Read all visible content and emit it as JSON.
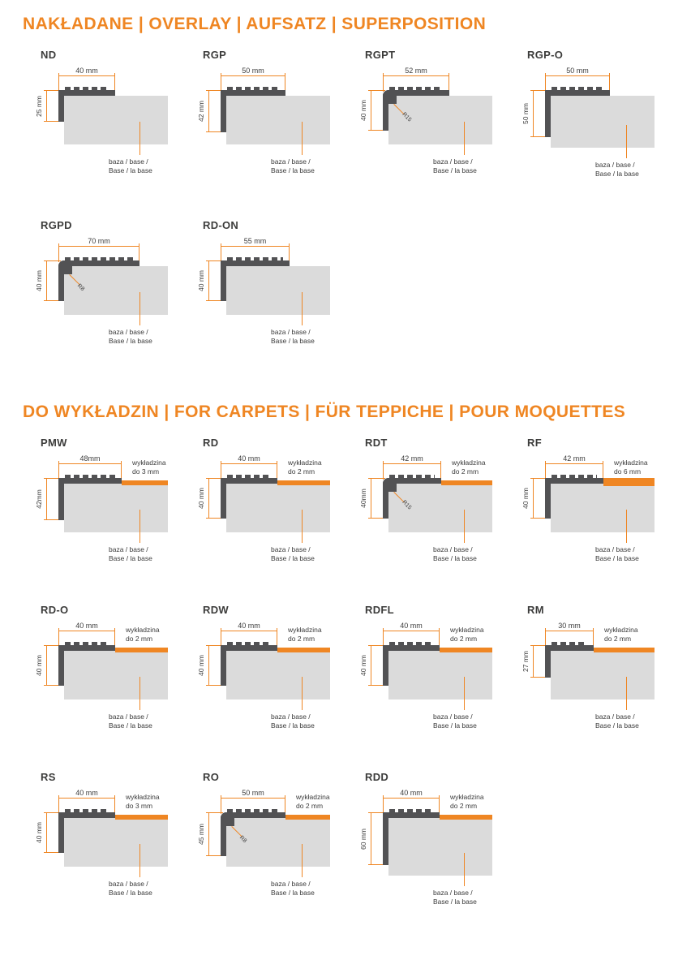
{
  "theme": {
    "accent_color": "#EF8623",
    "profile_color": "#525254",
    "base_color": "#DBDBDB",
    "text_color": "#3B3B3B"
  },
  "sections": [
    {
      "id": "overlay",
      "title": "NAKŁADANE | OVERLAY | AUFSATZ | SUPERPOSITION",
      "profiles": [
        {
          "name": "ND",
          "width_label": "40 mm",
          "height_label": "25 mm",
          "width_mm": 40,
          "height_mm": 25,
          "base_label": "baza / base /\nBase / la base"
        },
        {
          "name": "RGP",
          "width_label": "50 mm",
          "height_label": "42 mm",
          "width_mm": 50,
          "height_mm": 42,
          "base_label": "baza / base /\nBase / la base"
        },
        {
          "name": "RGPT",
          "width_label": "52 mm",
          "height_label": "40 mm",
          "width_mm": 52,
          "height_mm": 40,
          "radius": "R15",
          "rounded": true,
          "base_label": "baza / base /\nBase / la base"
        },
        {
          "name": "RGP-O",
          "width_label": "50 mm",
          "height_label": "50 mm",
          "width_mm": 50,
          "height_mm": 50,
          "base_label": "baza / base /\nBase / la base"
        },
        {
          "name": "RGPD",
          "width_label": "70 mm",
          "height_label": "40 mm",
          "width_mm": 70,
          "height_mm": 40,
          "radius": "R8",
          "rounded": true,
          "base_label": "baza / base /\nBase / la base"
        },
        {
          "name": "RD-ON",
          "width_label": "55 mm",
          "height_label": "40 mm",
          "width_mm": 55,
          "height_mm": 40,
          "base_label": "baza / base /\nBase / la base"
        }
      ]
    },
    {
      "id": "carpets",
      "title": "DO WYKŁADZIN | FOR CARPETS | FÜR TEPPICHE | POUR MOQUETTES",
      "profiles": [
        {
          "name": "PMW",
          "width_label": "48mm",
          "height_label": "42mm",
          "width_mm": 48,
          "height_mm": 42,
          "carpet_label": "wykładzina\ndo 3 mm",
          "base_label": "baza / base /\nBase / la base"
        },
        {
          "name": "RD",
          "width_label": "40 mm",
          "height_label": "40 mm",
          "width_mm": 40,
          "height_mm": 40,
          "carpet_label": "wykładzina\ndo 2 mm",
          "base_label": "baza / base /\nBase / la base"
        },
        {
          "name": "RDT",
          "width_label": "42 mm",
          "height_label": "40mm",
          "width_mm": 42,
          "height_mm": 40,
          "radius": "R15",
          "rounded": true,
          "carpet_label": "wykładzina\ndo 2 mm",
          "base_label": "baza / base /\nBase / la base"
        },
        {
          "name": "RF",
          "width_label": "42 mm",
          "height_label": "40 mm",
          "width_mm": 42,
          "height_mm": 40,
          "strip": "thick",
          "carpet_label": "wykładzina\ndo 6 mm",
          "base_label": "baza / base /\nBase / la base"
        },
        {
          "name": "RD-O",
          "width_label": "40 mm",
          "height_label": "40 mm",
          "width_mm": 40,
          "height_mm": 40,
          "carpet_label": "wykładzina\ndo 2 mm",
          "base_label": "baza / base /\nBase / la base"
        },
        {
          "name": "RDW",
          "width_label": "40 mm",
          "height_label": "40 mm",
          "width_mm": 40,
          "height_mm": 40,
          "carpet_label": "wykładzina\ndo 2 mm",
          "base_label": "baza / base /\nBase / la base"
        },
        {
          "name": "RDFL",
          "width_label": "40 mm",
          "height_label": "40 mm",
          "width_mm": 40,
          "height_mm": 40,
          "carpet_label": "wykładzina\ndo 2 mm",
          "base_label": "baza / base /\nBase / la base"
        },
        {
          "name": "RM",
          "width_label": "30 mm",
          "height_label": "27 mm",
          "width_mm": 30,
          "height_mm": 27,
          "carpet_label": "wykładzina\ndo 2 mm",
          "base_label": "baza / base /\nBase / la base"
        },
        {
          "name": "RS",
          "width_label": "40 mm",
          "height_label": "40 mm",
          "width_mm": 40,
          "height_mm": 40,
          "carpet_label": "wykładzina\ndo 3 mm",
          "base_label": "baza / base /\nBase / la base"
        },
        {
          "name": "RO",
          "width_label": "50 mm",
          "height_label": "45 mm",
          "width_mm": 50,
          "height_mm": 45,
          "radius": "R8",
          "rounded": true,
          "carpet_label": "wykładzina\ndo 2 mm",
          "base_label": "baza / base /\nBase / la base"
        },
        {
          "name": "RDD",
          "width_label": "40 mm",
          "height_label": "60 mm",
          "width_mm": 40,
          "height_mm": 60,
          "carpet_label": "wykładzina\ndo 2 mm",
          "base_label": "baza / base /\nBase / la base"
        }
      ]
    }
  ]
}
